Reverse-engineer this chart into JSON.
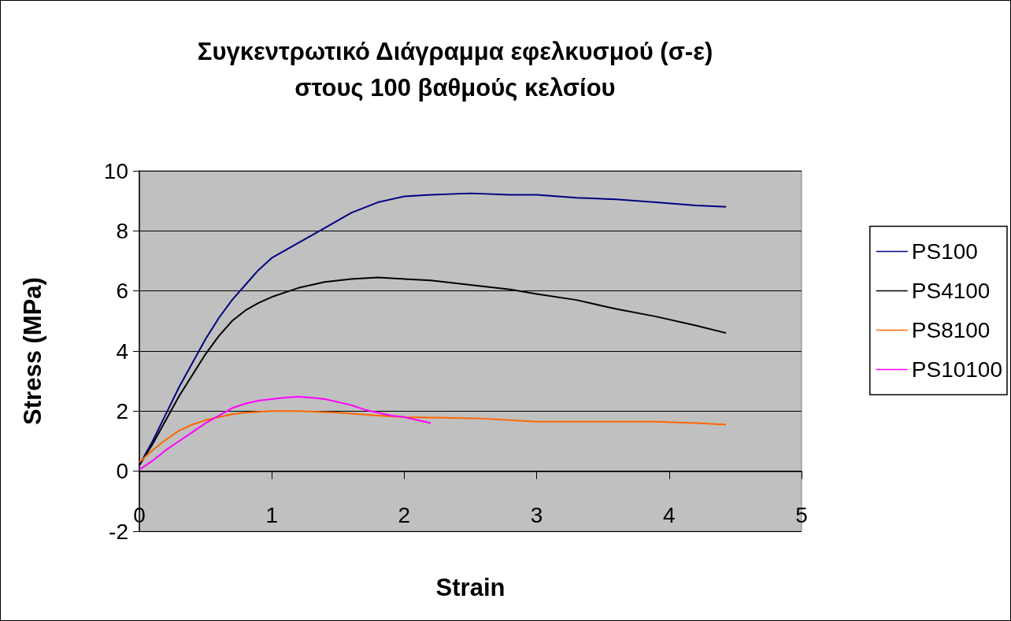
{
  "chart_data": {
    "type": "line",
    "title": "Συγκεντρωτικό Διάγραμμα εφελκυσμού (σ-ε)\nστους 100 βαθμούς κελσίου",
    "xlabel": "Strain",
    "ylabel": "Stress (MPa)",
    "xlim": [
      0,
      5
    ],
    "xticks": [
      0,
      1,
      2,
      3,
      4,
      5
    ],
    "ylim": [
      -2,
      10
    ],
    "yticks": [
      -2,
      0,
      2,
      4,
      6,
      8,
      10
    ],
    "grid": "y",
    "legend": "right",
    "marker": "none",
    "line_style": "solid",
    "series": [
      {
        "name": "PS100",
        "color": "#000080",
        "x": [
          0,
          0.1,
          0.2,
          0.3,
          0.4,
          0.5,
          0.6,
          0.7,
          0.8,
          0.9,
          1.0,
          1.2,
          1.4,
          1.6,
          1.8,
          2.0,
          2.2,
          2.5,
          2.8,
          3.0,
          3.3,
          3.6,
          3.9,
          4.2,
          4.43
        ],
        "values": [
          0.2,
          1.0,
          1.9,
          2.8,
          3.6,
          4.4,
          5.1,
          5.7,
          6.2,
          6.7,
          7.1,
          7.6,
          8.1,
          8.6,
          8.95,
          9.15,
          9.2,
          9.25,
          9.2,
          9.2,
          9.1,
          9.05,
          8.95,
          8.85,
          8.8
        ]
      },
      {
        "name": "PS4100",
        "color": "#000000",
        "x": [
          0,
          0.1,
          0.2,
          0.3,
          0.4,
          0.5,
          0.6,
          0.7,
          0.8,
          0.9,
          1.0,
          1.2,
          1.4,
          1.6,
          1.8,
          2.0,
          2.2,
          2.5,
          2.8,
          3.0,
          3.3,
          3.6,
          3.9,
          4.2,
          4.43
        ],
        "values": [
          0.2,
          0.9,
          1.7,
          2.5,
          3.2,
          3.9,
          4.5,
          5.0,
          5.35,
          5.6,
          5.8,
          6.1,
          6.3,
          6.4,
          6.45,
          6.4,
          6.35,
          6.2,
          6.05,
          5.9,
          5.7,
          5.4,
          5.15,
          4.85,
          4.6
        ]
      },
      {
        "name": "PS8100",
        "color": "#ff6600",
        "x": [
          0,
          0.1,
          0.2,
          0.3,
          0.4,
          0.5,
          0.6,
          0.7,
          0.8,
          1.0,
          1.2,
          1.5,
          1.8,
          2.0,
          2.3,
          2.6,
          3.0,
          3.3,
          3.6,
          3.9,
          4.2,
          4.43
        ],
        "values": [
          0.3,
          0.7,
          1.05,
          1.35,
          1.55,
          1.7,
          1.8,
          1.9,
          1.95,
          2.0,
          2.0,
          1.95,
          1.85,
          1.8,
          1.78,
          1.75,
          1.65,
          1.65,
          1.65,
          1.65,
          1.6,
          1.55
        ]
      },
      {
        "name": "PS10100",
        "color": "#ff00ff",
        "x": [
          0,
          0.1,
          0.2,
          0.3,
          0.4,
          0.5,
          0.6,
          0.7,
          0.8,
          0.9,
          1.0,
          1.1,
          1.2,
          1.3,
          1.4,
          1.5,
          1.6,
          1.7,
          1.8,
          1.9,
          2.0,
          2.1,
          2.2
        ],
        "values": [
          0.05,
          0.35,
          0.7,
          1.0,
          1.3,
          1.6,
          1.85,
          2.1,
          2.25,
          2.35,
          2.4,
          2.45,
          2.48,
          2.45,
          2.4,
          2.3,
          2.2,
          2.05,
          1.95,
          1.85,
          1.8,
          1.7,
          1.6
        ]
      }
    ]
  }
}
